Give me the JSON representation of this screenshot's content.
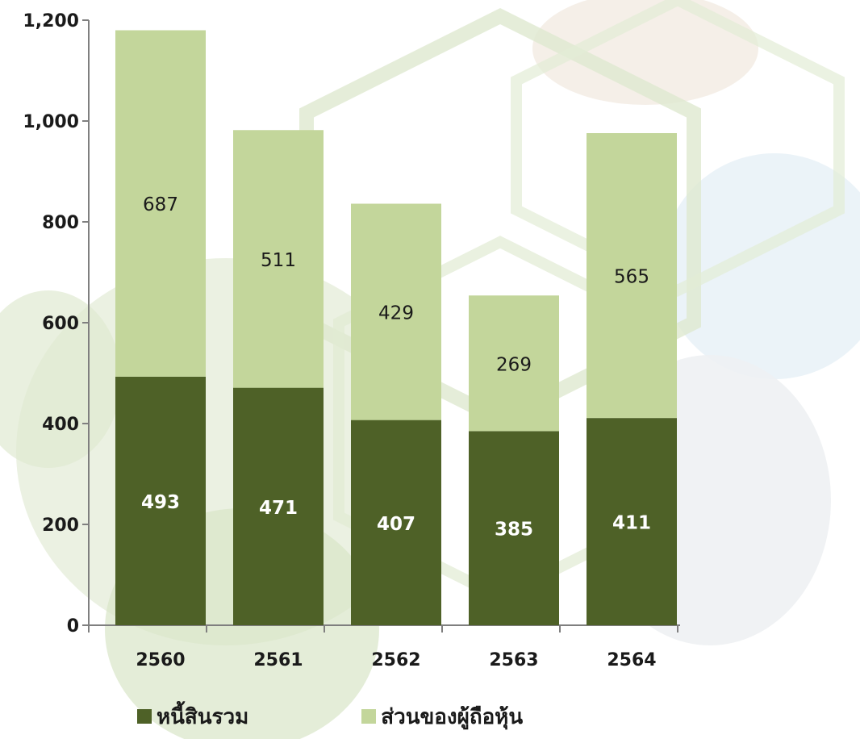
{
  "chart_data": {
    "type": "bar",
    "stacked": true,
    "categories": [
      "2560",
      "2561",
      "2562",
      "2563",
      "2564"
    ],
    "series": [
      {
        "name": "หนี้สินรวม",
        "values": [
          493,
          471,
          407,
          385,
          411
        ],
        "color": "#4e6127",
        "label_color": "#ffffff"
      },
      {
        "name": "ส่วนของผู้ถือหุ้น",
        "values": [
          687,
          511,
          429,
          269,
          565
        ],
        "color": "#c3d69b",
        "label_color": "#1a1a1a"
      }
    ],
    "ylim": [
      0,
      1200
    ],
    "yticks": [
      0,
      200,
      400,
      600,
      800,
      1000,
      1200
    ],
    "ytick_labels": [
      "0",
      "200",
      "400",
      "600",
      "800",
      "1,000",
      "1,200"
    ],
    "title": "",
    "xlabel": "",
    "ylabel": "",
    "legend_position": "bottom",
    "grid": false
  }
}
